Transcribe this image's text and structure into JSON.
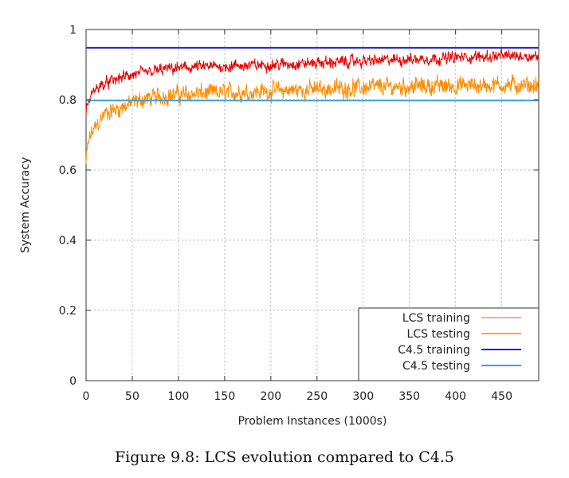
{
  "caption": "Figure 9.8: LCS evolution compared to C4.5",
  "chart_data": {
    "type": "line",
    "title": "",
    "xlabel": "Problem Instances (1000s)",
    "ylabel": "System Accuracy",
    "xlim": [
      0,
      490
    ],
    "ylim": [
      0,
      1
    ],
    "grid": true,
    "legend_position": "bottom-right",
    "xticks": [
      {
        "value": 0,
        "label": "0"
      },
      {
        "value": 50,
        "label": "50"
      },
      {
        "value": 100,
        "label": "100"
      },
      {
        "value": 150,
        "label": "150"
      },
      {
        "value": 200,
        "label": "200"
      },
      {
        "value": 250,
        "label": "250"
      },
      {
        "value": 300,
        "label": "300"
      },
      {
        "value": 350,
        "label": "350"
      },
      {
        "value": 400,
        "label": "400"
      },
      {
        "value": 450,
        "label": "450"
      }
    ],
    "yticks": [
      {
        "value": 0,
        "label": "0"
      },
      {
        "value": 0.2,
        "label": "0.2"
      },
      {
        "value": 0.4,
        "label": "0.4"
      },
      {
        "value": 0.6,
        "label": "0.6"
      },
      {
        "value": 0.8,
        "label": "0.8"
      },
      {
        "value": 1,
        "label": "1"
      }
    ],
    "series": [
      {
        "name": "LCS training",
        "color": "#ee0000",
        "legend_color": "#f48a8a",
        "kind": "noisy",
        "x": [
          0,
          2,
          5,
          10,
          15,
          20,
          30,
          40,
          50,
          60,
          70,
          80,
          100,
          120,
          150,
          200,
          250,
          300,
          350,
          400,
          450,
          490
        ],
        "y": [
          0.77,
          0.785,
          0.81,
          0.83,
          0.84,
          0.845,
          0.855,
          0.865,
          0.87,
          0.875,
          0.88,
          0.885,
          0.89,
          0.893,
          0.895,
          0.9,
          0.905,
          0.91,
          0.915,
          0.92,
          0.925,
          0.925
        ],
        "noise": 0.008
      },
      {
        "name": "LCS testing",
        "color": "#ff8c00",
        "legend_color": "#ff8c00",
        "kind": "noisy",
        "x": [
          0,
          2,
          5,
          10,
          15,
          20,
          30,
          40,
          50,
          60,
          70,
          80,
          100,
          150,
          200,
          250,
          300,
          350,
          400,
          450,
          490
        ],
        "y": [
          0.62,
          0.67,
          0.7,
          0.72,
          0.74,
          0.76,
          0.77,
          0.78,
          0.79,
          0.8,
          0.805,
          0.81,
          0.815,
          0.82,
          0.825,
          0.83,
          0.835,
          0.838,
          0.84,
          0.842,
          0.84
        ],
        "noise": 0.012
      },
      {
        "name": "C4.5 training",
        "color": "#2020dd",
        "legend_color": "#2020dd",
        "kind": "constant",
        "x": [
          0,
          490
        ],
        "y": [
          0.948,
          0.948
        ],
        "noise": 0
      },
      {
        "name": "C4.5 testing",
        "color": "#3f9fdc",
        "legend_color": "#3f9fdc",
        "kind": "constant",
        "x": [
          0,
          490
        ],
        "y": [
          0.798,
          0.798
        ],
        "noise": 0
      }
    ]
  }
}
